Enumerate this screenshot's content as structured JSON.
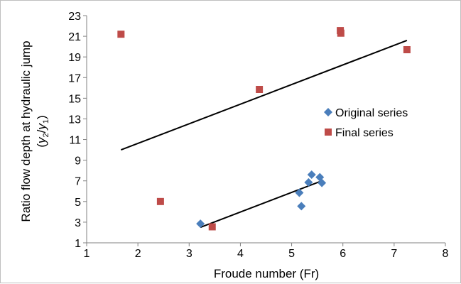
{
  "chart_data": {
    "type": "scatter",
    "xlabel": "Froude number (Fr)",
    "ylabel": {
      "line1": "Ratio flow depth at hydraulic jump",
      "line2_open": "(",
      "y2": "y",
      "y2_sub": "2",
      "slash": "/",
      "y1": "y",
      "y1_sub": "1",
      "line2_close": ")"
    },
    "xlim": [
      1,
      8
    ],
    "ylim": [
      1,
      23
    ],
    "x_ticks": [
      "1",
      "2",
      "3",
      "4",
      "5",
      "6",
      "7",
      "8"
    ],
    "y_ticks": [
      "1",
      "3",
      "5",
      "7",
      "9",
      "11",
      "13",
      "15",
      "17",
      "19",
      "21",
      "23"
    ],
    "grid": false,
    "legend_position": "right",
    "series": [
      {
        "name": "Original series",
        "marker": "diamond",
        "color": "#4a7ebb",
        "points": [
          {
            "x": 3.22,
            "y": 2.85
          },
          {
            "x": 5.15,
            "y": 5.85
          },
          {
            "x": 5.19,
            "y": 4.55
          },
          {
            "x": 5.33,
            "y": 6.85
          },
          {
            "x": 5.39,
            "y": 7.6
          },
          {
            "x": 5.55,
            "y": 7.35
          },
          {
            "x": 5.59,
            "y": 6.8
          }
        ],
        "trendline": {
          "x0": 3.22,
          "y0": 2.5,
          "x1": 5.59,
          "y1": 7.0
        }
      },
      {
        "name": "Final series",
        "marker": "square",
        "color": "#be4b48",
        "points": [
          {
            "x": 1.67,
            "y": 21.2
          },
          {
            "x": 2.44,
            "y": 5.0
          },
          {
            "x": 3.45,
            "y": 2.55
          },
          {
            "x": 4.37,
            "y": 15.85
          },
          {
            "x": 5.95,
            "y": 21.55
          },
          {
            "x": 5.96,
            "y": 21.3
          },
          {
            "x": 7.25,
            "y": 19.7
          }
        ],
        "trendline": {
          "x0": 1.67,
          "y0": 10.0,
          "x1": 7.25,
          "y1": 20.6
        }
      }
    ]
  }
}
